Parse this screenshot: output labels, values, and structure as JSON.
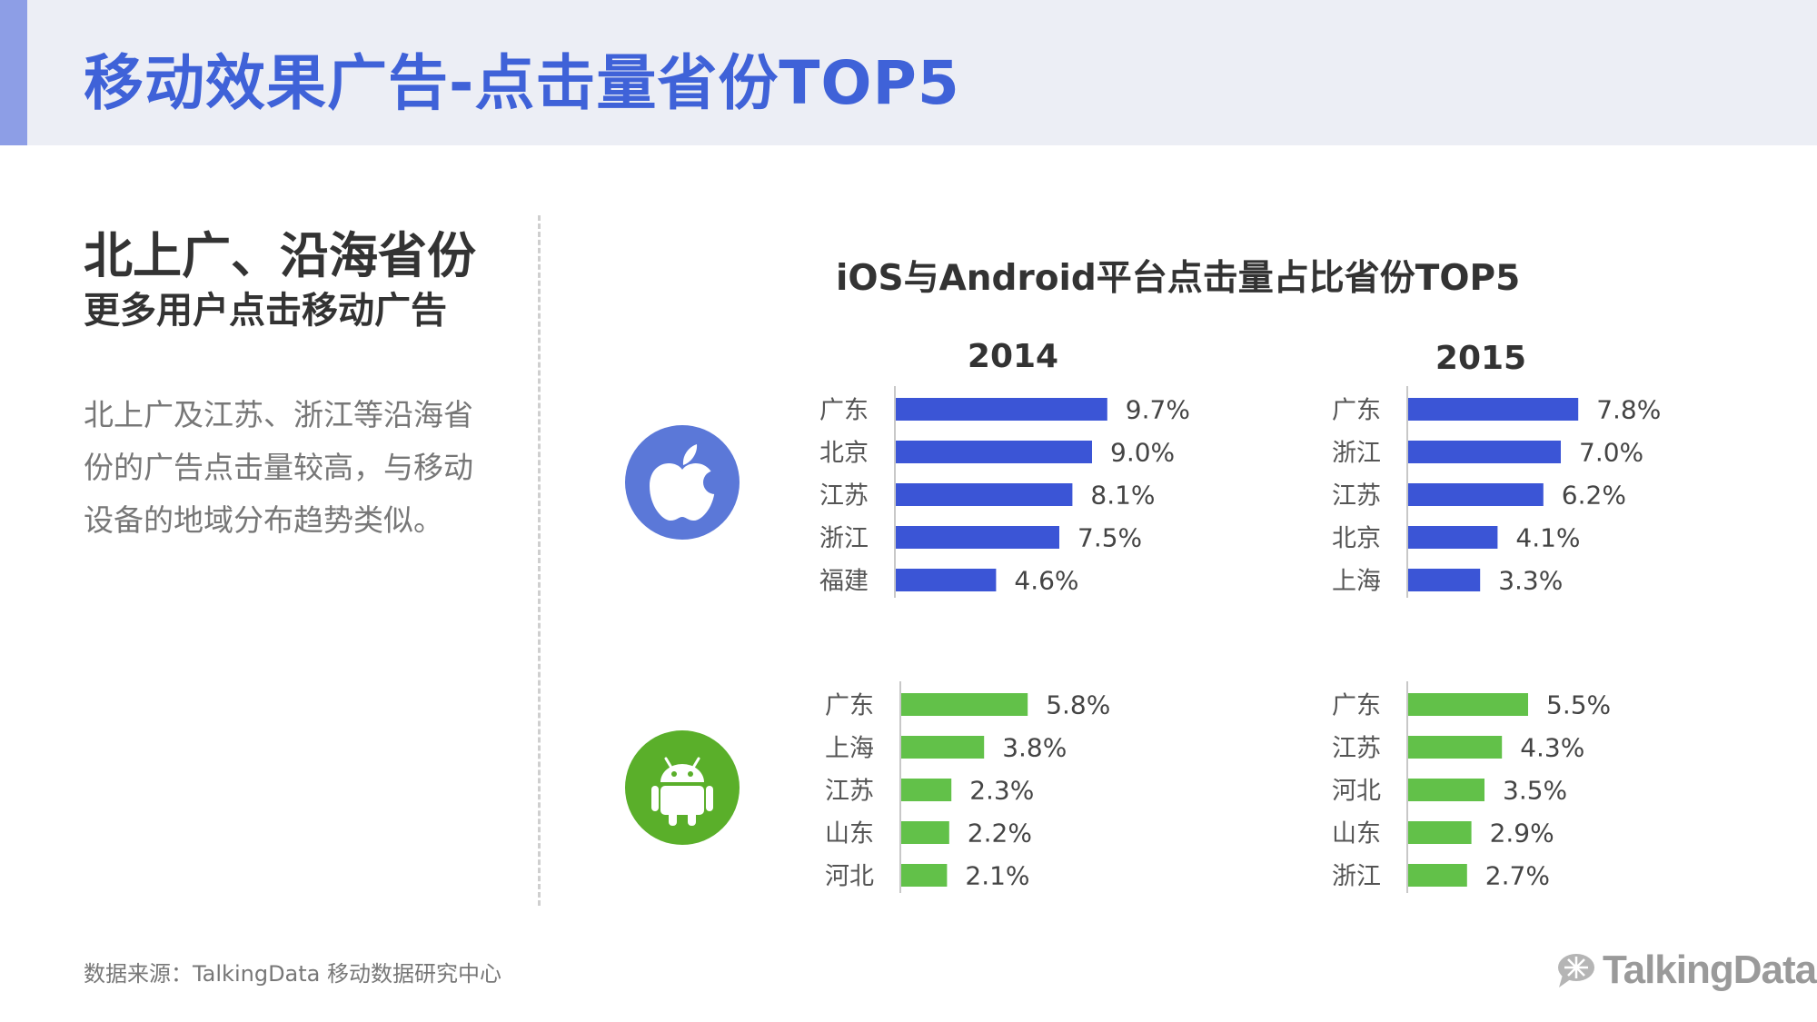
{
  "header": {
    "title": "移动效果广告-点击量省份TOP5"
  },
  "left": {
    "heading_line1": "北上广、沿海省份",
    "heading_line2": "更多用户点击移动广告",
    "body": "北上广及江苏、浙江等沿海省份的广告点击量较高，与移动设备的地域分布趋势类似。"
  },
  "footer": {
    "source": "数据来源：TalkingData 移动数据研究中心"
  },
  "brand": {
    "name": "TalkingData"
  },
  "icons": {
    "ios": "apple-icon",
    "android": "android-icon"
  },
  "colors": {
    "accent": "#3f62d8",
    "ios_bar": "#3b55d6",
    "android_bar": "#62c149",
    "android_badge": "#5aaf2a",
    "ios_badge": "#5b78d8"
  },
  "chart_data": [
    {
      "type": "bar",
      "orientation": "horizontal",
      "panel_title": "2014",
      "platform": "iOS",
      "title": "iOS与Android平台点击量占比省份TOP5",
      "categories": [
        "广东",
        "北京",
        "江苏",
        "浙江",
        "福建"
      ],
      "values": [
        9.7,
        9.0,
        8.1,
        7.5,
        4.6
      ],
      "labels": [
        "9.7%",
        "9.0%",
        "8.1%",
        "7.5%",
        "4.6%"
      ],
      "unit": "%"
    },
    {
      "type": "bar",
      "orientation": "horizontal",
      "panel_title": "2015",
      "platform": "iOS",
      "categories": [
        "广东",
        "浙江",
        "江苏",
        "北京",
        "上海"
      ],
      "values": [
        7.8,
        7.0,
        6.2,
        4.1,
        3.3
      ],
      "labels": [
        "7.8%",
        "7.0%",
        "6.2%",
        "4.1%",
        "3.3%"
      ],
      "unit": "%"
    },
    {
      "type": "bar",
      "orientation": "horizontal",
      "platform": "Android",
      "categories": [
        "广东",
        "上海",
        "江苏",
        "山东",
        "河北"
      ],
      "values": [
        5.8,
        3.8,
        2.3,
        2.2,
        2.1
      ],
      "labels": [
        "5.8%",
        "3.8%",
        "2.3%",
        "2.2%",
        "2.1%"
      ],
      "unit": "%"
    },
    {
      "type": "bar",
      "orientation": "horizontal",
      "platform": "Android",
      "categories": [
        "广东",
        "江苏",
        "河北",
        "山东",
        "浙江"
      ],
      "values": [
        5.5,
        4.3,
        3.5,
        2.9,
        2.7
      ],
      "labels": [
        "5.5%",
        "4.3%",
        "3.5%",
        "2.9%",
        "2.7%"
      ],
      "unit": "%"
    }
  ]
}
